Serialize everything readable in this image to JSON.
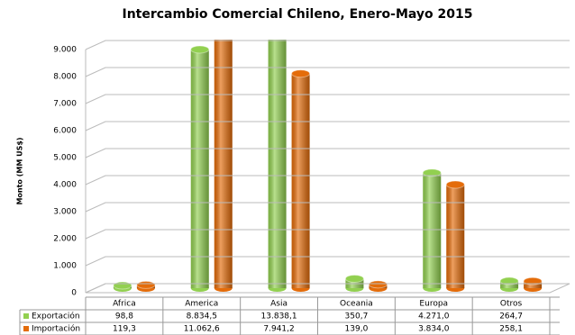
{
  "chart_data": {
    "type": "bar3d",
    "title": "Intercambio Comercial Chileno, Enero-Mayo 2015",
    "y_label": "Monto (MM US$)",
    "categories": [
      "Africa",
      "America",
      "Asia",
      "Oceania",
      "Europa",
      "Otros"
    ],
    "series": [
      {
        "name": "Exportación",
        "color": "#92d050",
        "values": [
          98.8,
          8834.5,
          13838.1,
          350.7,
          4271.0,
          264.7
        ],
        "value_labels": [
          "98,8",
          "8.834,5",
          "13.838,1",
          "350,7",
          "4.271,0",
          "264,7"
        ]
      },
      {
        "name": "Importación",
        "color": "#e46c0a",
        "values": [
          119.3,
          11062.6,
          7941.2,
          139.0,
          3834.0,
          258.1
        ],
        "value_labels": [
          "119,3",
          "11.062,6",
          "7.941,2",
          "139,0",
          "3.834,0",
          "258,1"
        ]
      }
    ],
    "ylim": [
      0,
      9000
    ],
    "yticks": [
      0,
      {
        "value": 1000,
        "label": "1.000"
      },
      {
        "value": 2000,
        "label": "2.000"
      },
      {
        "value": 3000,
        "label": "3.000"
      },
      {
        "value": 4000,
        "label": "4.000"
      },
      {
        "value": 5000,
        "label": "5.000"
      },
      {
        "value": 6000,
        "label": "6.000"
      },
      {
        "value": 7000,
        "label": "7.000"
      },
      {
        "value": 8000,
        "label": "8.000"
      },
      {
        "value": 9000,
        "label": "9.000"
      }
    ],
    "grid": true
  }
}
